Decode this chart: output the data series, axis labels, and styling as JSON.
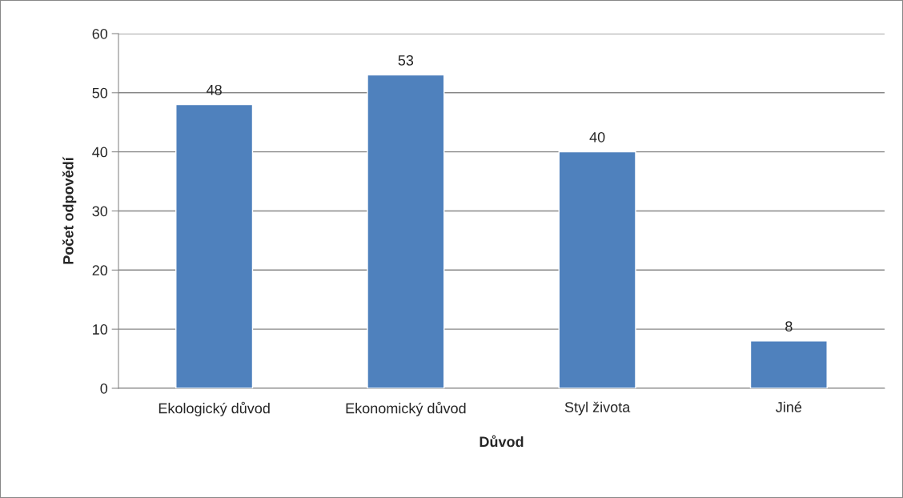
{
  "chart_data": {
    "type": "bar",
    "xlabel": "Důvod",
    "ylabel": "Počet odpovědí",
    "categories": [
      "Ekologický důvod",
      "Ekonomický důvod",
      "Styl života",
      "Jiné"
    ],
    "values": [
      48,
      53,
      40,
      8
    ],
    "color": "#4f81bd",
    "ylim": [
      0,
      60
    ],
    "yticks": [
      0,
      10,
      20,
      30,
      40,
      50,
      60
    ],
    "grid": "y",
    "data_labels": true
  }
}
